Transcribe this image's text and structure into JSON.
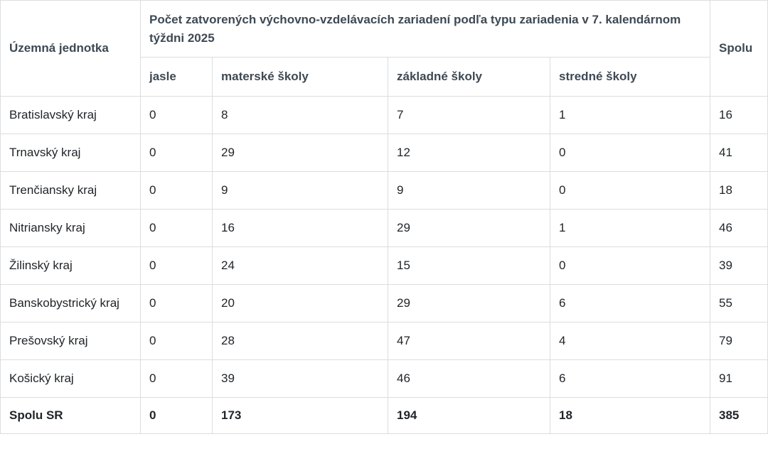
{
  "table": {
    "title": "Počet zatvorených výchovno-vzdelávacích zariadení podľa typu zariadenia v 7. kalendárnom týždni 2025",
    "row_header": "Územná jednotka",
    "columns": [
      "jasle",
      "materské školy",
      "základné školy",
      "stredné školy"
    ],
    "total_column": "Spolu",
    "rows": [
      {
        "region": "Bratislavský kraj",
        "values": [
          0,
          8,
          7,
          1
        ],
        "total": 16
      },
      {
        "region": "Trnavský kraj",
        "values": [
          0,
          29,
          12,
          0
        ],
        "total": 41
      },
      {
        "region": "Trenčiansky kraj",
        "values": [
          0,
          9,
          9,
          0
        ],
        "total": 18
      },
      {
        "region": "Nitriansky kraj",
        "values": [
          0,
          16,
          29,
          1
        ],
        "total": 46
      },
      {
        "region": "Žilinský kraj",
        "values": [
          0,
          24,
          15,
          0
        ],
        "total": 39
      },
      {
        "region": "Banskobystrický kraj",
        "values": [
          0,
          20,
          29,
          6
        ],
        "total": 55
      },
      {
        "region": "Prešovský kraj",
        "values": [
          0,
          28,
          47,
          4
        ],
        "total": 79
      },
      {
        "region": "Košický kraj",
        "values": [
          0,
          39,
          46,
          6
        ],
        "total": 91
      }
    ],
    "total_row": {
      "region": "Spolu SR",
      "values": [
        0,
        173,
        194,
        18
      ],
      "total": 385
    }
  },
  "chart_data": {
    "type": "table",
    "title": "Počet zatvorených výchovno-vzdelávacích zariadení podľa typu zariadenia v 7. kalendárnom týždni 2025",
    "categories": [
      "Bratislavský kraj",
      "Trnavský kraj",
      "Trenčiansky kraj",
      "Nitriansky kraj",
      "Žilinský kraj",
      "Banskobystrický kraj",
      "Prešovský kraj",
      "Košický kraj",
      "Spolu SR"
    ],
    "series": [
      {
        "name": "jasle",
        "values": [
          0,
          0,
          0,
          0,
          0,
          0,
          0,
          0,
          0
        ]
      },
      {
        "name": "materské školy",
        "values": [
          8,
          29,
          9,
          16,
          24,
          20,
          28,
          39,
          173
        ]
      },
      {
        "name": "základné školy",
        "values": [
          7,
          12,
          9,
          29,
          15,
          29,
          47,
          46,
          194
        ]
      },
      {
        "name": "stredné školy",
        "values": [
          1,
          0,
          0,
          1,
          0,
          6,
          4,
          6,
          18
        ]
      },
      {
        "name": "Spolu",
        "values": [
          16,
          41,
          18,
          46,
          39,
          55,
          79,
          91,
          385
        ]
      }
    ]
  },
  "colors": {
    "header_text": "#3e4953",
    "body_text": "#212529",
    "border": "#dadde0",
    "background": "#ffffff"
  }
}
